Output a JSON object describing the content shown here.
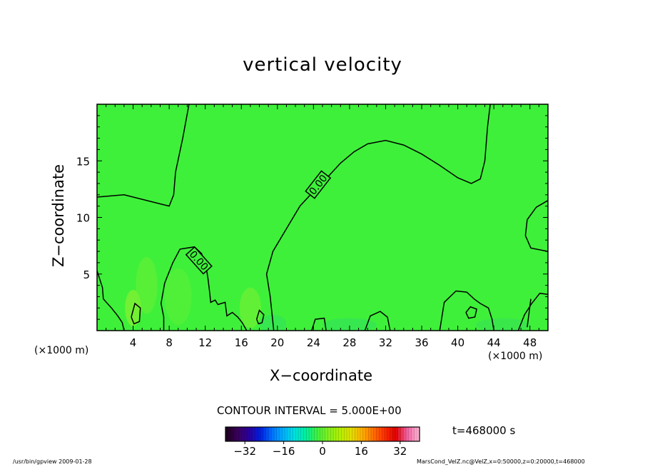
{
  "chart_data": {
    "type": "contour",
    "title": "vertical velocity",
    "xlabel": "X−coordinate",
    "ylabel": "Z−coordinate",
    "x_unit_label": "(×1000 m)",
    "z_unit_label": "(×1000 m)",
    "xlim": [
      0,
      50
    ],
    "ylim": [
      0,
      20
    ],
    "x_ticks": [
      4,
      8,
      12,
      16,
      20,
      24,
      28,
      32,
      36,
      40,
      44,
      48
    ],
    "y_ticks": [
      5,
      10,
      15
    ],
    "contour_labels": [
      "0.00",
      "0.00"
    ],
    "contour_interval_text": "CONTOUR INTERVAL = 5.000E+00",
    "colorbar": {
      "min": -40,
      "max": 40,
      "ticks": [
        -32,
        -16,
        0,
        16,
        32
      ],
      "colors": [
        "#200020",
        "#3a0060",
        "#2a00a0",
        "#0020e0",
        "#0070ff",
        "#00b0ff",
        "#00e0e0",
        "#00f0a0",
        "#40f040",
        "#80f020",
        "#b0f000",
        "#e0e000",
        "#ffb000",
        "#ff7000",
        "#ff3000",
        "#e00000",
        "#f060a0",
        "#ffb0d0"
      ]
    },
    "field_color": "#3ef03a",
    "time_label": "t=468000 s"
  },
  "footer": {
    "left": "/usr/bin/gpview   2009-01-28",
    "right": "MarsCond_VelZ.nc@VelZ,x=0:50000,z=0:20000,t=468000"
  }
}
